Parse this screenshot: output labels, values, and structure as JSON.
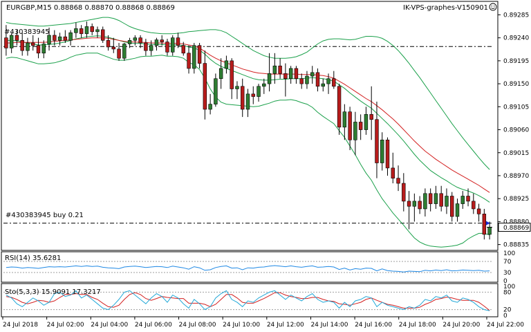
{
  "window": {
    "symbol_info": "EURGBP,M15  0.88868 0.88870 0.88868 0.88869",
    "watermark": "IK-VPS-graphes-V150901",
    "smiley_icon": "smiley-icon"
  },
  "chart_data": {
    "type": "candlestick",
    "symbol": "EURGBP",
    "timeframe": "M15",
    "last_price_label": "0.88869",
    "order_line_label": "#430383945 buy 0.21",
    "order_line_label_top": "#430383945",
    "order_line_price": 0.88877,
    "upper_dash_price": 0.89223,
    "yaxis": {
      "ylim": [
        0.88825,
        0.8931
      ],
      "ticks": [
        "0.89285",
        "0.89240",
        "0.89195",
        "0.89150",
        "0.89105",
        "0.89060",
        "0.89015",
        "0.88970",
        "0.88925",
        "0.88880",
        "0.88835"
      ]
    },
    "xaxis": {
      "ticks": [
        "24 Jul 2018",
        "24 Jul 02:00",
        "24 Jul 04:00",
        "24 Jul 06:00",
        "24 Jul 08:00",
        "24 Jul 10:00",
        "24 Jul 12:00",
        "24 Jul 14:00",
        "24 Jul 16:00",
        "24 Jul 18:00",
        "24 Jul 20:00",
        "24 Jul 22:00"
      ]
    },
    "candles": [
      [
        0.8924,
        0.89265,
        0.89205,
        0.8922
      ],
      [
        0.8922,
        0.8925,
        0.8921,
        0.89245
      ],
      [
        0.89245,
        0.89255,
        0.89225,
        0.89235
      ],
      [
        0.89235,
        0.8925,
        0.89205,
        0.89215
      ],
      [
        0.89215,
        0.8924,
        0.89205,
        0.8923
      ],
      [
        0.8923,
        0.89245,
        0.89215,
        0.89225
      ],
      [
        0.89225,
        0.8924,
        0.892,
        0.8921
      ],
      [
        0.8921,
        0.89235,
        0.892,
        0.89228
      ],
      [
        0.89228,
        0.8926,
        0.89215,
        0.89245
      ],
      [
        0.89245,
        0.89255,
        0.89225,
        0.89235
      ],
      [
        0.89235,
        0.8925,
        0.89225,
        0.89242
      ],
      [
        0.89242,
        0.89255,
        0.8923,
        0.89235
      ],
      [
        0.89235,
        0.89255,
        0.89225,
        0.8925
      ],
      [
        0.8925,
        0.8927,
        0.8924,
        0.89258
      ],
      [
        0.89258,
        0.89265,
        0.8924,
        0.89248
      ],
      [
        0.89248,
        0.89272,
        0.8924,
        0.89262
      ],
      [
        0.89262,
        0.89268,
        0.89245,
        0.89252
      ],
      [
        0.89252,
        0.89262,
        0.8924,
        0.89256
      ],
      [
        0.89256,
        0.89262,
        0.8923,
        0.89235
      ],
      [
        0.89235,
        0.89245,
        0.89215,
        0.89222
      ],
      [
        0.89222,
        0.8924,
        0.8921,
        0.89218
      ],
      [
        0.89218,
        0.8923,
        0.89195,
        0.892
      ],
      [
        0.892,
        0.8923,
        0.89195,
        0.89228
      ],
      [
        0.89228,
        0.8924,
        0.8922,
        0.89235
      ],
      [
        0.89235,
        0.89245,
        0.89225,
        0.8924
      ],
      [
        0.8924,
        0.89245,
        0.8922,
        0.8923
      ],
      [
        0.8923,
        0.89238,
        0.89205,
        0.89215
      ],
      [
        0.89215,
        0.89235,
        0.89205,
        0.89225
      ],
      [
        0.89225,
        0.8924,
        0.89215,
        0.89236
      ],
      [
        0.89236,
        0.89245,
        0.89225,
        0.89232
      ],
      [
        0.89232,
        0.89238,
        0.89205,
        0.89212
      ],
      [
        0.89212,
        0.89245,
        0.89205,
        0.8924
      ],
      [
        0.8924,
        0.8925,
        0.8922,
        0.89225
      ],
      [
        0.89225,
        0.89232,
        0.89205,
        0.8921
      ],
      [
        0.8921,
        0.89225,
        0.8917,
        0.8918
      ],
      [
        0.8918,
        0.8923,
        0.8917,
        0.89225
      ],
      [
        0.89225,
        0.8923,
        0.8918,
        0.8919
      ],
      [
        0.8919,
        0.89215,
        0.8908,
        0.891
      ],
      [
        0.891,
        0.8913,
        0.8909,
        0.8911
      ],
      [
        0.8911,
        0.8917,
        0.89105,
        0.8916
      ],
      [
        0.8916,
        0.892,
        0.8914,
        0.8918
      ],
      [
        0.8918,
        0.89205,
        0.8917,
        0.89195
      ],
      [
        0.89195,
        0.892,
        0.8912,
        0.8914
      ],
      [
        0.8914,
        0.89155,
        0.8912,
        0.89145
      ],
      [
        0.89145,
        0.8916,
        0.89085,
        0.891
      ],
      [
        0.891,
        0.8914,
        0.89085,
        0.8913
      ],
      [
        0.8913,
        0.89145,
        0.8911,
        0.89125
      ],
      [
        0.89125,
        0.8915,
        0.89115,
        0.89145
      ],
      [
        0.89145,
        0.8916,
        0.8913,
        0.8915
      ],
      [
        0.8915,
        0.8921,
        0.89135,
        0.8917
      ],
      [
        0.8917,
        0.8921,
        0.8915,
        0.89185
      ],
      [
        0.89185,
        0.892,
        0.8916,
        0.8917
      ],
      [
        0.8917,
        0.8919,
        0.89125,
        0.8916
      ],
      [
        0.8916,
        0.89185,
        0.8915,
        0.8918
      ],
      [
        0.8918,
        0.89185,
        0.8915,
        0.8916
      ],
      [
        0.8916,
        0.8917,
        0.8914,
        0.8915
      ],
      [
        0.8915,
        0.89175,
        0.8914,
        0.89165
      ],
      [
        0.89165,
        0.89185,
        0.8915,
        0.89172
      ],
      [
        0.89172,
        0.8918,
        0.89135,
        0.89145
      ],
      [
        0.89145,
        0.8916,
        0.89135,
        0.8915
      ],
      [
        0.8915,
        0.8917,
        0.8913,
        0.8916
      ],
      [
        0.8916,
        0.89175,
        0.8914,
        0.89145
      ],
      [
        0.89145,
        0.8915,
        0.8905,
        0.89065
      ],
      [
        0.89065,
        0.8911,
        0.8904,
        0.89095
      ],
      [
        0.89095,
        0.89105,
        0.8902,
        0.8904
      ],
      [
        0.8904,
        0.89095,
        0.8901,
        0.89075
      ],
      [
        0.89075,
        0.8909,
        0.8904,
        0.8906
      ],
      [
        0.8906,
        0.89105,
        0.8905,
        0.8909
      ],
      [
        0.8909,
        0.89145,
        0.8904,
        0.8908
      ],
      [
        0.8908,
        0.89115,
        0.88965,
        0.88995
      ],
      [
        0.88995,
        0.89055,
        0.8898,
        0.8904
      ],
      [
        0.8904,
        0.89045,
        0.8897,
        0.88985
      ],
      [
        0.88985,
        0.89015,
        0.88955,
        0.88965
      ],
      [
        0.88965,
        0.8899,
        0.8894,
        0.88955
      ],
      [
        0.88955,
        0.88975,
        0.889,
        0.8892
      ],
      [
        0.8892,
        0.8894,
        0.88865,
        0.8891
      ],
      [
        0.8891,
        0.88935,
        0.8888,
        0.8892
      ],
      [
        0.8892,
        0.8893,
        0.88895,
        0.88905
      ],
      [
        0.88905,
        0.88945,
        0.8889,
        0.88935
      ],
      [
        0.88935,
        0.88945,
        0.889,
        0.88915
      ],
      [
        0.88915,
        0.8895,
        0.88905,
        0.88935
      ],
      [
        0.88935,
        0.8895,
        0.889,
        0.8891
      ],
      [
        0.8891,
        0.88945,
        0.88895,
        0.8893
      ],
      [
        0.8893,
        0.88938,
        0.8888,
        0.8889
      ],
      [
        0.8889,
        0.88925,
        0.8888,
        0.88915
      ],
      [
        0.88915,
        0.8894,
        0.88905,
        0.8893
      ],
      [
        0.8893,
        0.88945,
        0.8891,
        0.8892
      ],
      [
        0.8892,
        0.88935,
        0.88895,
        0.88905
      ],
      [
        0.88905,
        0.88915,
        0.8888,
        0.88895
      ],
      [
        0.88895,
        0.88905,
        0.88845,
        0.88855
      ],
      [
        0.88855,
        0.8888,
        0.88845,
        0.88869
      ]
    ],
    "bollinger": {
      "middle": [
        0.89235,
        0.89235,
        0.89234,
        0.89232,
        0.8923,
        0.89228,
        0.89226,
        0.89226,
        0.89227,
        0.89228,
        0.8923,
        0.89232,
        0.89235,
        0.89238,
        0.8924,
        0.89242,
        0.89243,
        0.89244,
        0.89243,
        0.89241,
        0.89238,
        0.89235,
        0.89232,
        0.8923,
        0.89229,
        0.89229,
        0.89228,
        0.89227,
        0.89227,
        0.89227,
        0.89226,
        0.89226,
        0.89226,
        0.89225,
        0.89222,
        0.8922,
        0.89216,
        0.89208,
        0.89198,
        0.8919,
        0.89184,
        0.8918,
        0.89176,
        0.89172,
        0.89168,
        0.89164,
        0.8916,
        0.89158,
        0.89157,
        0.89157,
        0.89158,
        0.89159,
        0.89159,
        0.8916,
        0.8916,
        0.8916,
        0.89161,
        0.89162,
        0.89161,
        0.8916,
        0.89158,
        0.89155,
        0.89148,
        0.89141,
        0.89132,
        0.89124,
        0.89116,
        0.89109,
        0.89102,
        0.89092,
        0.89082,
        0.89072,
        0.89061,
        0.8905,
        0.89038,
        0.89025,
        0.89012,
        0.89,
        0.8899,
        0.8898,
        0.88973,
        0.88966,
        0.8896,
        0.88953,
        0.88947,
        0.88943,
        0.8894,
        0.88936,
        0.88931,
        0.88925,
        0.88918
      ],
      "upper": [
        0.8927,
        0.89268,
        0.89267,
        0.89266,
        0.89265,
        0.89264,
        0.89263,
        0.89263,
        0.89264,
        0.89265,
        0.89266,
        0.89267,
        0.89268,
        0.8927,
        0.89272,
        0.89274,
        0.89276,
        0.89278,
        0.8928,
        0.8928,
        0.89278,
        0.89274,
        0.89268,
        0.89262,
        0.89258,
        0.89255,
        0.89252,
        0.8925,
        0.89249,
        0.89248,
        0.89248,
        0.89248,
        0.89249,
        0.8925,
        0.89252,
        0.89253,
        0.89254,
        0.89255,
        0.89256,
        0.89256,
        0.89254,
        0.8925,
        0.89243,
        0.89236,
        0.89229,
        0.89222,
        0.89215,
        0.8921,
        0.89205,
        0.89202,
        0.892,
        0.892,
        0.892,
        0.89201,
        0.89203,
        0.89207,
        0.89212,
        0.8922,
        0.89228,
        0.89234,
        0.89237,
        0.89238,
        0.89238,
        0.89237,
        0.89236,
        0.89237,
        0.8924,
        0.89243,
        0.89243,
        0.89242,
        0.89239,
        0.89233,
        0.89225,
        0.89215,
        0.89203,
        0.8919,
        0.89176,
        0.89162,
        0.89147,
        0.89132,
        0.89117,
        0.89102,
        0.89087,
        0.89072,
        0.89058,
        0.89044,
        0.89031,
        0.89018,
        0.89005,
        0.88993,
        0.88982
      ],
      "lower": [
        0.892,
        0.89202,
        0.89201,
        0.89198,
        0.89195,
        0.89192,
        0.89189,
        0.89189,
        0.8919,
        0.89191,
        0.89194,
        0.89197,
        0.89202,
        0.89206,
        0.89208,
        0.8921,
        0.8921,
        0.8921,
        0.89206,
        0.89202,
        0.89198,
        0.89196,
        0.89196,
        0.89198,
        0.892,
        0.89203,
        0.89204,
        0.89204,
        0.89205,
        0.89206,
        0.89204,
        0.89204,
        0.89203,
        0.892,
        0.89192,
        0.89187,
        0.89178,
        0.89161,
        0.8914,
        0.89124,
        0.89114,
        0.8911,
        0.89109,
        0.89108,
        0.89107,
        0.89106,
        0.89105,
        0.89106,
        0.89109,
        0.89112,
        0.89116,
        0.89118,
        0.89118,
        0.89119,
        0.89117,
        0.89113,
        0.8911,
        0.89104,
        0.89094,
        0.89086,
        0.89079,
        0.89072,
        0.89058,
        0.89045,
        0.89028,
        0.89011,
        0.88992,
        0.88975,
        0.88961,
        0.88942,
        0.88925,
        0.88911,
        0.88897,
        0.88885,
        0.88873,
        0.8886,
        0.88848,
        0.8884,
        0.88835,
        0.88832,
        0.88831,
        0.8883,
        0.88831,
        0.88832,
        0.88834,
        0.88838,
        0.88846,
        0.88852,
        0.88857,
        0.88857,
        0.88854
      ]
    },
    "ma_red": [
      0.8923,
      0.8923,
      0.89231,
      0.89231,
      0.89231,
      0.89231,
      0.89231,
      0.89231,
      0.89232,
      0.89233,
      0.89234,
      0.89235,
      0.89236,
      0.89237,
      0.89238,
      0.89239,
      0.8924,
      0.8924,
      0.8924,
      0.89239,
      0.89237,
      0.89235,
      0.89233,
      0.89232,
      0.89232,
      0.89231,
      0.89231,
      0.8923,
      0.8923,
      0.8923,
      0.89229,
      0.89229,
      0.89229,
      0.89228,
      0.89226,
      0.89224,
      0.8922,
      0.89213,
      0.89206,
      0.892,
      0.89195,
      0.89191,
      0.89187,
      0.89183,
      0.89179,
      0.89176,
      0.89173,
      0.89171,
      0.8917,
      0.89169,
      0.89169,
      0.89169,
      0.89169,
      0.89169,
      0.89169,
      0.89168,
      0.89168,
      0.89168,
      0.89167,
      0.89166,
      0.89164,
      0.89161,
      0.89155,
      0.89149,
      0.89142,
      0.89135,
      0.89128,
      0.89121,
      0.89115,
      0.89107,
      0.89099,
      0.8909,
      0.89081,
      0.89071,
      0.8906,
      0.89049,
      0.89038,
      0.89028,
      0.89018,
      0.8901,
      0.89002,
      0.88995,
      0.88988,
      0.88981,
      0.88975,
      0.88969,
      0.88963,
      0.88957,
      0.88951,
      0.88944,
      0.88937
    ],
    "rsi": {
      "label": "RSI(14) 35.6281",
      "ylim": [
        0,
        100
      ],
      "ticks": [
        "100",
        "70",
        "30",
        "0"
      ],
      "values": [
        48,
        50,
        49,
        46,
        48,
        47,
        45,
        48,
        51,
        50,
        51,
        50,
        52,
        54,
        52,
        54,
        52,
        53,
        49,
        47,
        46,
        44,
        50,
        52,
        53,
        51,
        48,
        50,
        52,
        51,
        48,
        53,
        50,
        47,
        42,
        51,
        47,
        38,
        40,
        48,
        52,
        54,
        46,
        47,
        40,
        47,
        46,
        49,
        50,
        53,
        55,
        53,
        51,
        54,
        51,
        49,
        52,
        54,
        49,
        50,
        52,
        50,
        41,
        46,
        39,
        44,
        42,
        46,
        45,
        36,
        43,
        37,
        35,
        34,
        32,
        35,
        34,
        33,
        38,
        36,
        39,
        37,
        40,
        36,
        37,
        39,
        38,
        37,
        38,
        35,
        36
      ]
    },
    "stochastic": {
      "label": "Sto(5,3,3) 15.9091 17.3217",
      "ylim": [
        0,
        100
      ],
      "ticks": [
        "100",
        "80",
        "20",
        "0"
      ],
      "k": [
        70,
        60,
        40,
        30,
        45,
        60,
        50,
        35,
        45,
        75,
        80,
        65,
        70,
        85,
        60,
        70,
        55,
        40,
        25,
        20,
        35,
        55,
        80,
        85,
        70,
        55,
        40,
        60,
        75,
        65,
        45,
        70,
        60,
        40,
        25,
        55,
        40,
        20,
        30,
        60,
        75,
        85,
        55,
        45,
        30,
        50,
        45,
        60,
        70,
        80,
        85,
        70,
        55,
        70,
        60,
        50,
        65,
        75,
        55,
        45,
        50,
        45,
        25,
        45,
        30,
        50,
        55,
        65,
        60,
        30,
        45,
        35,
        30,
        25,
        20,
        30,
        25,
        35,
        55,
        50,
        65,
        60,
        70,
        50,
        45,
        60,
        55,
        45,
        30,
        20,
        16
      ],
      "d": [
        65,
        62,
        55,
        45,
        40,
        45,
        52,
        50,
        45,
        50,
        62,
        72,
        72,
        75,
        72,
        72,
        62,
        55,
        42,
        30,
        28,
        35,
        55,
        72,
        78,
        72,
        58,
        52,
        58,
        65,
        62,
        60,
        58,
        58,
        42,
        42,
        42,
        38,
        30,
        38,
        55,
        72,
        72,
        60,
        45,
        42,
        42,
        50,
        58,
        68,
        78,
        78,
        70,
        65,
        62,
        58,
        58,
        62,
        62,
        55,
        50,
        48,
        40,
        38,
        35,
        40,
        45,
        55,
        60,
        52,
        45,
        38,
        35,
        30,
        25,
        25,
        25,
        28,
        38,
        45,
        55,
        58,
        63,
        60,
        55,
        52,
        52,
        52,
        45,
        32,
        17
      ]
    },
    "colors": {
      "bull_body": "#2e7d32",
      "bear_body": "#b71c1c",
      "bollinger": "#1aa04a",
      "ma": "#d32020",
      "rsi": "#1e88e5",
      "sto_k": "#22a8d8",
      "sto_d": "#d32020",
      "grid": "#000000"
    }
  }
}
